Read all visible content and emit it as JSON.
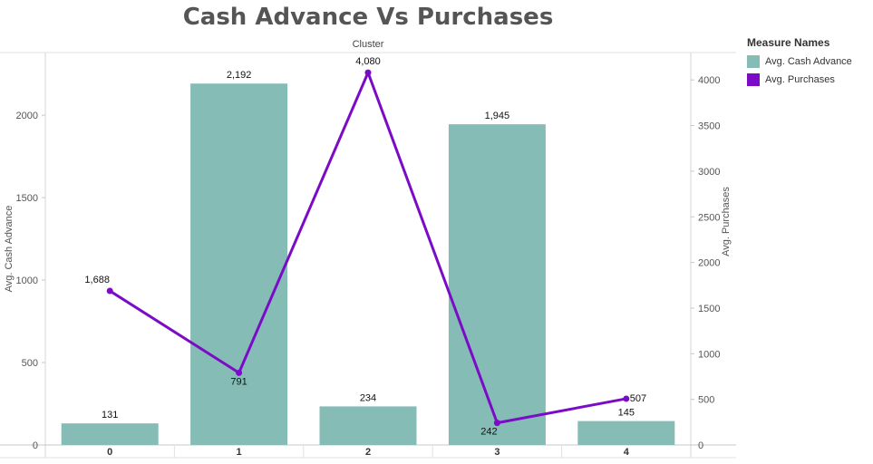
{
  "chart_data": {
    "type": "bar",
    "title": "Cash Advance Vs Purchases",
    "column_header": "Cluster",
    "categories": [
      "0",
      "1",
      "2",
      "3",
      "4"
    ],
    "series": [
      {
        "name": "Avg. Cash Advance",
        "type": "bar",
        "axis": "left",
        "color": "#86bcb6",
        "values": [
          131,
          2192,
          234,
          1945,
          145
        ],
        "labels": [
          "131",
          "2,192",
          "234",
          "1,945",
          "145"
        ]
      },
      {
        "name": "Avg. Purchases",
        "type": "line",
        "axis": "right",
        "color": "#7b0bc7",
        "values": [
          1688,
          791,
          4080,
          242,
          507
        ],
        "labels": [
          "1,688",
          "791",
          "4,080",
          "242",
          "507"
        ]
      }
    ],
    "y_left": {
      "label": "Avg. Cash Advance",
      "range": [
        0,
        2380
      ],
      "ticks": [
        0,
        500,
        1000,
        1500,
        2000
      ],
      "tick_labels": [
        "0",
        "500",
        "1000",
        "1500",
        "2000"
      ]
    },
    "y_right": {
      "label": "Avg. Purchases",
      "range": [
        0,
        4300
      ],
      "ticks": [
        0,
        500,
        1000,
        1500,
        2000,
        2500,
        3000,
        3500,
        4000
      ],
      "tick_labels": [
        "0",
        "500",
        "1000",
        "1500",
        "2000",
        "2500",
        "3000",
        "3500",
        "4000"
      ]
    },
    "legend": {
      "title": "Measure Names",
      "position": "top-right"
    }
  }
}
